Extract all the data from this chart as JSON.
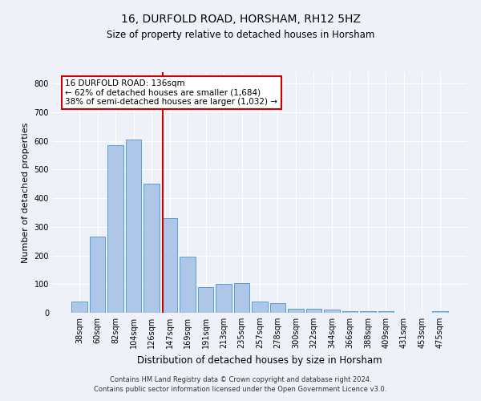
{
  "title1": "16, DURFOLD ROAD, HORSHAM, RH12 5HZ",
  "title2": "Size of property relative to detached houses in Horsham",
  "xlabel": "Distribution of detached houses by size in Horsham",
  "ylabel": "Number of detached properties",
  "categories": [
    "38sqm",
    "60sqm",
    "82sqm",
    "104sqm",
    "126sqm",
    "147sqm",
    "169sqm",
    "191sqm",
    "213sqm",
    "235sqm",
    "257sqm",
    "278sqm",
    "300sqm",
    "322sqm",
    "344sqm",
    "366sqm",
    "388sqm",
    "409sqm",
    "431sqm",
    "453sqm",
    "475sqm"
  ],
  "values": [
    40,
    265,
    585,
    605,
    450,
    330,
    195,
    90,
    100,
    105,
    40,
    35,
    15,
    15,
    10,
    5,
    5,
    5,
    0,
    0,
    5
  ],
  "bar_color": "#aec6e8",
  "bar_edge_color": "#5a9fd4",
  "vline_x": 4.636,
  "vline_color": "#cc0000",
  "annotation_text": "16 DURFOLD ROAD: 136sqm\n← 62% of detached houses are smaller (1,684)\n38% of semi-detached houses are larger (1,032) →",
  "annotation_box_color": "#cc0000",
  "ylim": [
    0,
    840
  ],
  "yticks": [
    0,
    100,
    200,
    300,
    400,
    500,
    600,
    700,
    800
  ],
  "footer1": "Contains HM Land Registry data © Crown copyright and database right 2024.",
  "footer2": "Contains public sector information licensed under the Open Government Licence v3.0.",
  "bg_color": "#eef2f8",
  "plot_bg_color": "#eef2f8",
  "bar_width": 0.85,
  "title1_fontsize": 10,
  "title2_fontsize": 8.5,
  "xlabel_fontsize": 8.5,
  "ylabel_fontsize": 8,
  "tick_fontsize": 7,
  "annot_fontsize": 7.5,
  "footer_fontsize": 6
}
